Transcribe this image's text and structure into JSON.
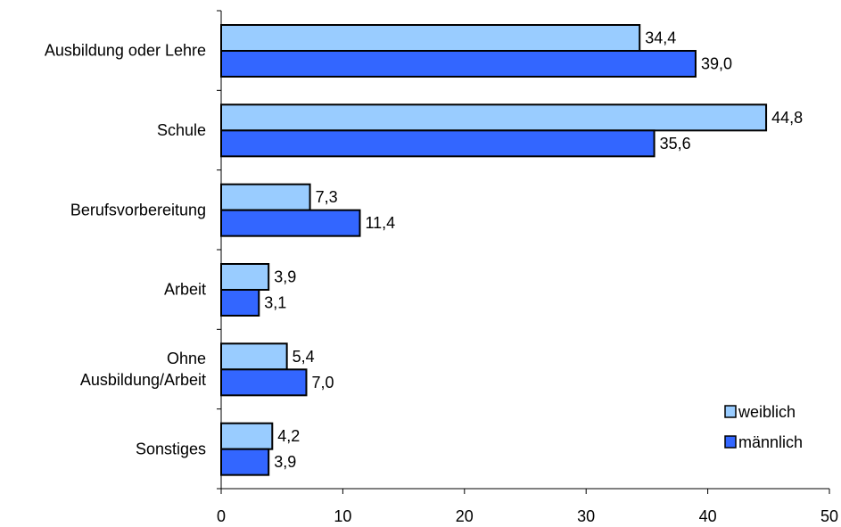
{
  "chart_data": {
    "type": "bar",
    "orientation": "horizontal",
    "categories": [
      "Ausbildung oder Lehre",
      "Schule",
      "Berufsvorbereitung",
      "Arbeit",
      "Ohne Ausbildung/Arbeit",
      "Sonstiges"
    ],
    "category_lines": [
      [
        "Ausbildung oder Lehre"
      ],
      [
        "Schule"
      ],
      [
        "Berufsvorbereitung"
      ],
      [
        "Arbeit"
      ],
      [
        "Ohne",
        "Ausbildung/Arbeit"
      ],
      [
        "Sonstiges"
      ]
    ],
    "series": [
      {
        "name": "weiblich",
        "color": "#99ccff",
        "values": [
          34.4,
          44.8,
          7.3,
          3.9,
          5.4,
          4.2
        ],
        "labels": [
          "34,4",
          "44,8",
          "7,3",
          "3,9",
          "5,4",
          "4,2"
        ]
      },
      {
        "name": "männlich",
        "color": "#3366ff",
        "values": [
          39.0,
          35.6,
          11.4,
          3.1,
          7.0,
          3.9
        ],
        "labels": [
          "39,0",
          "35,6",
          "11,4",
          "3,1",
          "7,0",
          "3,9"
        ]
      }
    ],
    "xlim": [
      0,
      50
    ],
    "xticks": [
      0,
      10,
      20,
      30,
      40,
      50
    ],
    "title": "",
    "xlabel": "",
    "ylabel": "",
    "grid": false,
    "legend_position": "bottom-right"
  }
}
